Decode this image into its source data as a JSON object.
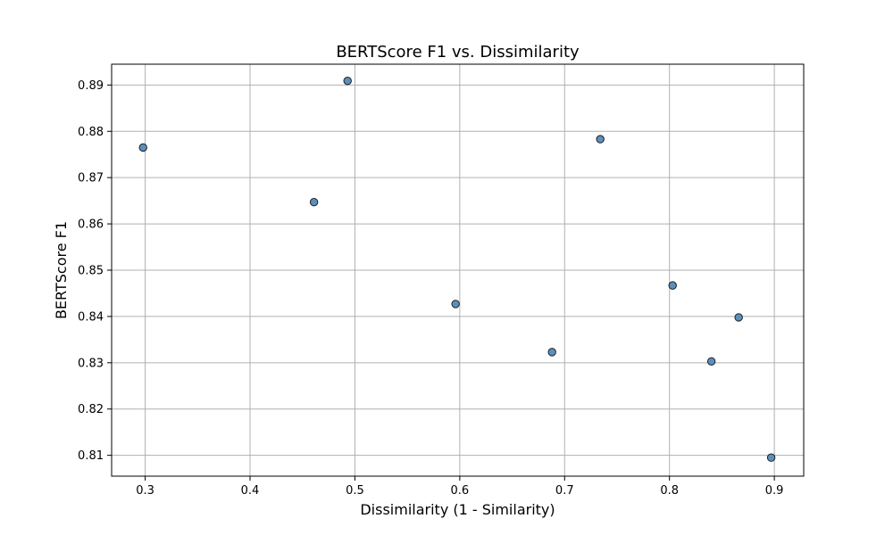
{
  "chart_data": {
    "type": "scatter",
    "title": "BERTScore F1 vs. Dissimilarity",
    "xlabel": "Dissimilarity (1 - Similarity)",
    "ylabel": "BERTScore F1",
    "xlim": [
      0.268,
      0.928
    ],
    "ylim": [
      0.8055,
      0.8945
    ],
    "xticks": [
      "0.3",
      "0.4",
      "0.5",
      "0.6",
      "0.7",
      "0.8",
      "0.9"
    ],
    "yticks": [
      "0.81",
      "0.82",
      "0.83",
      "0.84",
      "0.85",
      "0.86",
      "0.87",
      "0.88",
      "0.89"
    ],
    "grid": true,
    "marker_color": "#5b8fbe",
    "marker_edge_color": "#1f1f1f",
    "points": [
      {
        "x": 0.298,
        "y": 0.8765
      },
      {
        "x": 0.461,
        "y": 0.8647
      },
      {
        "x": 0.493,
        "y": 0.8909
      },
      {
        "x": 0.596,
        "y": 0.8427
      },
      {
        "x": 0.688,
        "y": 0.8323
      },
      {
        "x": 0.734,
        "y": 0.8783
      },
      {
        "x": 0.803,
        "y": 0.8467
      },
      {
        "x": 0.84,
        "y": 0.8303
      },
      {
        "x": 0.866,
        "y": 0.8398
      },
      {
        "x": 0.897,
        "y": 0.8095
      }
    ]
  }
}
